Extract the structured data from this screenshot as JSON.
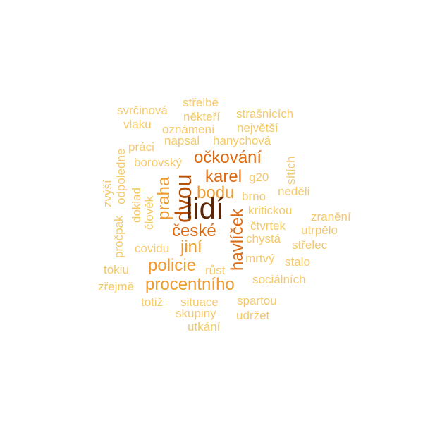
{
  "colors": {
    "light": "#f5c96a",
    "medium": "#ee9a2e",
    "strong": "#dd6a12",
    "deep": "#b5520c",
    "darkest": "#5a2606"
  },
  "words": {
    "strelbe": "střelbě",
    "svrcinova": "svrčinová",
    "nekteri": "někteří",
    "strasnicich": "strašnicích",
    "vlaku": "vlaku",
    "oznameni": "oznámení",
    "nejvetsi": "největší",
    "praci": "práci",
    "napsal": "napsal",
    "hanychova": "hanychová",
    "odpoledne": "odpoledne",
    "ockovani": "očkování",
    "borovsky": "borovský",
    "sitich": "sítích",
    "zvysi": "zvýší",
    "karel": "karel",
    "g20": "g20",
    "praha": "praha",
    "dvou": "dvou",
    "doklad": "doklad",
    "clovek": "člověk",
    "bodu": "bodu",
    "nedeli": "neděli",
    "brno": "brno",
    "lidi": "lidí",
    "procpak": "pročpak",
    "kritickou": "kritickou",
    "havlicek": "havlíček",
    "zraneni": "zranění",
    "ctvrtek": "čtvrtek",
    "ceske": "české",
    "utrpelo": "utrpělo",
    "chysta": "chystá",
    "covidu": "covidu",
    "jini": "jiní",
    "strelec": "střelec",
    "mrtvy": "mrtvý",
    "stalo": "stalo",
    "policie": "policie",
    "tokiu": "tokiu",
    "rust": "růst",
    "socialnich": "sociálních",
    "zrejme": "zřejmě",
    "procentniho": "procentního",
    "totiz": "totiž",
    "situace": "situace",
    "spartou": "spartou",
    "skupiny": "skupiny",
    "udrzet": "udržet",
    "utkani": "utkání"
  }
}
